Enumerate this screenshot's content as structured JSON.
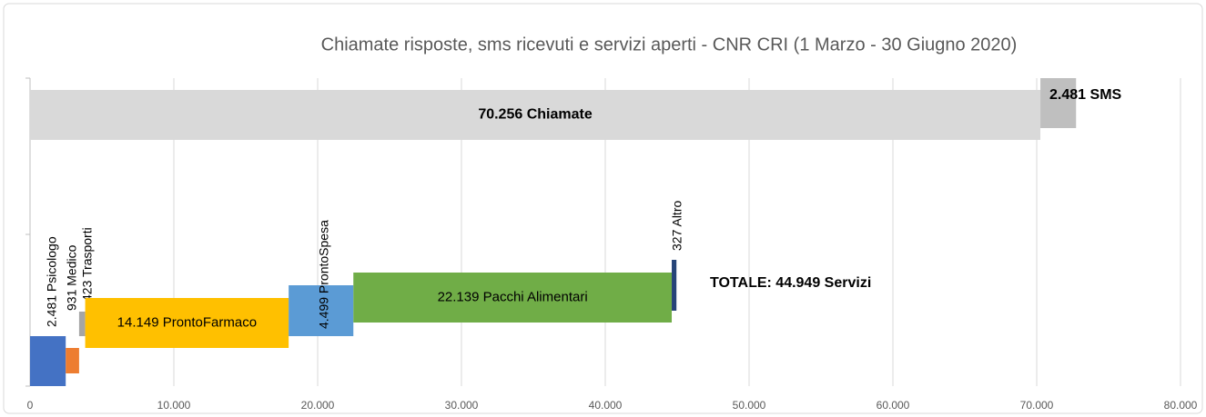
{
  "chart_data": {
    "type": "waterfall-bar",
    "title": "Chiamate risposte, sms ricevuti e servizi aperti - CNR CRI (1 Marzo - 30 Giugno 2020)",
    "xlim": [
      0,
      80000
    ],
    "xticks": [
      0,
      {
        "value": 10000,
        "label": "10.000"
      },
      {
        "value": 20000,
        "label": "20.000"
      },
      {
        "value": 30000,
        "label": "30.000"
      },
      {
        "value": 40000,
        "label": "40.000"
      },
      {
        "value": 50000,
        "label": "50.000"
      },
      {
        "value": 60000,
        "label": "60.000"
      },
      {
        "value": 70000,
        "label": "70.000"
      },
      {
        "value": 80000,
        "label": "80.000"
      }
    ],
    "grid": true,
    "bars": [
      {
        "values": [
          70256,
          2481
        ],
        "value_labels": [
          "70.256 Chiamate",
          "2.481 SMS"
        ],
        "colors": [
          "#d9d9d9",
          "#bfbfbf"
        ]
      },
      {
        "values": [
          2481,
          931,
          423,
          14149,
          4499,
          22139,
          327
        ],
        "value_labels": [
          "2.481 Psicologo",
          "931 Medico",
          "423 Trasporti",
          "14.149 ProntoFarmaco",
          "4.499 ProntoSpesa",
          "22.139 Pacchi Alimentari",
          "327 Altro"
        ],
        "colors": [
          "#4472c4",
          "#ed7d31",
          "#a5a5a5",
          "#ffc000",
          "#5b9bd5",
          "#70ad47",
          "#264478"
        ]
      }
    ],
    "annotation": "TOTALE: 44.949 Servizi"
  }
}
